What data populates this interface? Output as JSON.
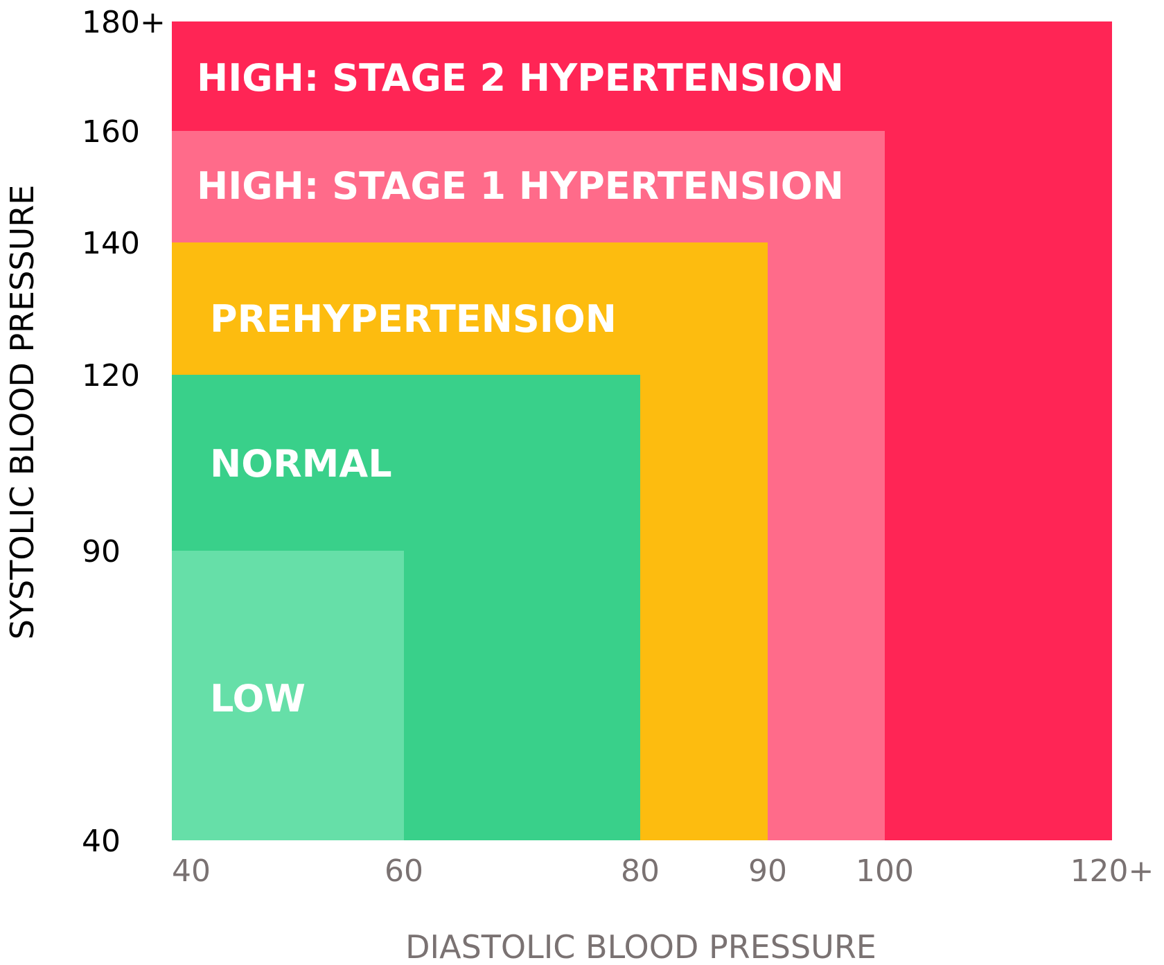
{
  "chart_data": {
    "type": "heatmap",
    "title": "",
    "xlabel": "DIASTOLIC BLOOD PRESSURE",
    "ylabel": "SYSTOLIC BLOOD PRESSURE",
    "x_ticks": [
      {
        "value": 40,
        "label": "40"
      },
      {
        "value": 60,
        "label": "60"
      },
      {
        "value": 80,
        "label": "80"
      },
      {
        "value": 90,
        "label": "90"
      },
      {
        "value": 100,
        "label": "100"
      },
      {
        "value": 120,
        "label": "120+"
      }
    ],
    "y_ticks": [
      {
        "value": 40,
        "label": "40"
      },
      {
        "value": 90,
        "label": "90"
      },
      {
        "value": 120,
        "label": "120"
      },
      {
        "value": 140,
        "label": "140"
      },
      {
        "value": 160,
        "label": "160"
      },
      {
        "value": 180,
        "label": "180+"
      }
    ],
    "regions": [
      {
        "name": "stage2",
        "label": "HIGH: STAGE 2 HYPERTENSION",
        "x_max": 120,
        "y_max": 180,
        "color": "#ff2555"
      },
      {
        "name": "stage1",
        "label": "HIGH: STAGE 1 HYPERTENSION",
        "x_max": 100,
        "y_max": 160,
        "color": "#ff6b8a"
      },
      {
        "name": "prehypertension",
        "label": "PREHYPERTENSION",
        "x_max": 90,
        "y_max": 140,
        "color": "#fdbc0f"
      },
      {
        "name": "normal",
        "label": "NORMAL",
        "x_max": 80,
        "y_max": 120,
        "color": "#39d08a"
      },
      {
        "name": "low",
        "label": "LOW",
        "x_max": 60,
        "y_max": 90,
        "color": "#66dfa8"
      }
    ],
    "grid": false,
    "legend": "none"
  }
}
